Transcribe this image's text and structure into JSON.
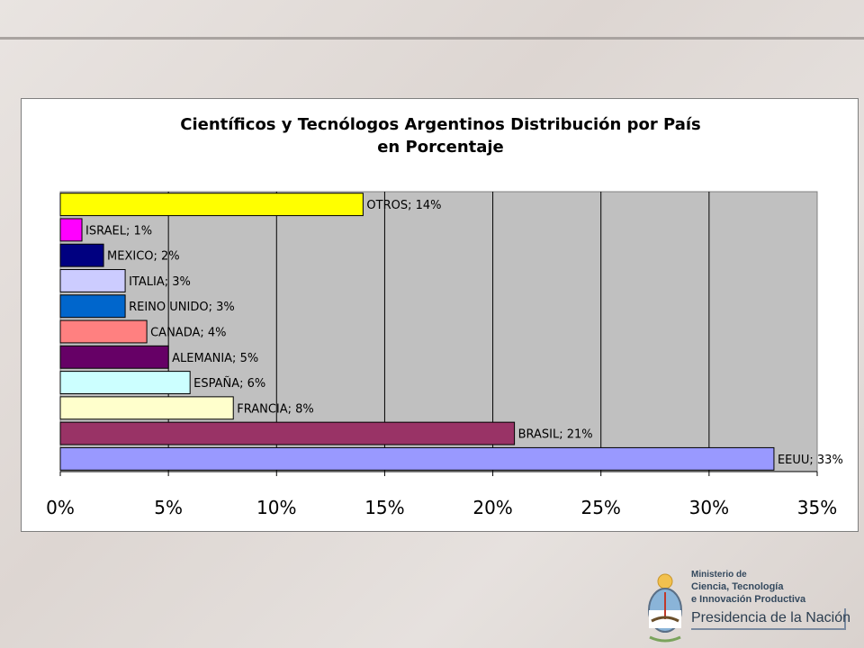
{
  "chart_data": {
    "type": "bar",
    "orientation": "horizontal",
    "title": "Científicos y Tecnólogos Argentinos Distribución por País",
    "subtitle": "en Porcentaje",
    "categories": [
      "EEUU",
      "BRASIL",
      "FRANCIA",
      "ESPAÑA",
      "ALEMANIA",
      "CANADA",
      "REINO UNIDO",
      "ITALIA",
      "MEXICO",
      "ISRAEL",
      "OTROS"
    ],
    "values": [
      33,
      21,
      8,
      6,
      5,
      4,
      3,
      3,
      2,
      1,
      14
    ],
    "data_labels": [
      "EEUU; 33%",
      "BRASIL; 21%",
      "FRANCIA; 8%",
      "ESPAÑA; 6%",
      "ALEMANIA; 5%",
      "CANADA; 4%",
      "REINO UNIDO; 3%",
      "ITALIA; 3%",
      "MEXICO; 2%",
      "ISRAEL; 1%",
      "OTROS; 14%"
    ],
    "colors": [
      "#9999ff",
      "#993366",
      "#ffffcc",
      "#ccffff",
      "#660066",
      "#ff8080",
      "#0066cc",
      "#ccccff",
      "#000080",
      "#ff00ff",
      "#ffff00"
    ],
    "xlim": [
      0,
      35
    ],
    "xticks": [
      "0%",
      "5%",
      "10%",
      "15%",
      "20%",
      "25%",
      "30%",
      "35%"
    ],
    "xlabel": "",
    "ylabel": "",
    "grid": true,
    "legend": "none",
    "plot_background": "#c0c0c0"
  },
  "logo": {
    "line1": "Ministerio de",
    "line2": "Ciencia, Tecnología",
    "line3": "e Innovación Productiva",
    "line4": "Presidencia de la Nación"
  }
}
